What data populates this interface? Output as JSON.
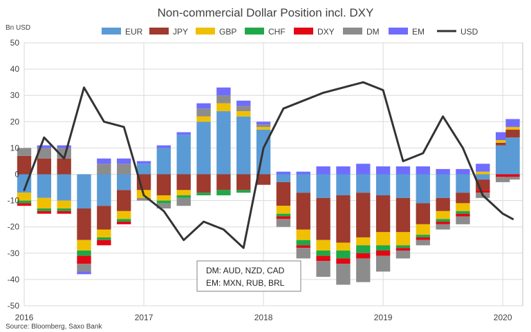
{
  "chart_data": {
    "type": "bar",
    "stacked": true,
    "title": "Non-commercial Dollar Position incl. DXY",
    "ylabel": "Bn USD",
    "source": "Source: Bloomberg, Saxo Bank",
    "ylim": [
      -50,
      50
    ],
    "yticks": [
      "50",
      "40",
      "30",
      "20",
      "10",
      "0",
      "-10",
      "-20",
      "-30",
      "-40",
      "-50"
    ],
    "xticks": [
      "2016",
      "2017",
      "2018",
      "2019",
      "2020"
    ],
    "grid": true,
    "legend_position": "top",
    "annotation": [
      "DM: AUD, NZD, CAD",
      "EM: MXN, RUB, BRL"
    ],
    "x_dates": [
      "2016-01",
      "2016-03",
      "2016-05",
      "2016-07",
      "2016-09",
      "2016-11",
      "2017-01",
      "2017-03",
      "2017-05",
      "2017-07",
      "2017-09",
      "2017-11",
      "2018-01",
      "2018-03",
      "2018-05",
      "2018-07",
      "2018-09",
      "2018-11",
      "2019-01",
      "2019-03",
      "2019-05",
      "2019-07",
      "2019-09",
      "2019-11",
      "2020-01",
      "2020-02"
    ],
    "series": [
      {
        "name": "EUR",
        "color": "#5b9bd5",
        "values": [
          -7,
          -9,
          -10,
          -13,
          -12,
          -6,
          4,
          10,
          15,
          20,
          24,
          22,
          17,
          -3,
          -7,
          -9,
          -8,
          -7,
          -8,
          -9,
          -11,
          -9,
          -7,
          -2,
          11,
          14
        ]
      },
      {
        "name": "JPY",
        "color": "#9e3a2e",
        "values": [
          7,
          6,
          6,
          -12,
          -9,
          -8,
          -6,
          -8,
          -6,
          -7,
          -6,
          -6,
          -4,
          -9,
          -14,
          -16,
          -18,
          -17,
          -14,
          -13,
          -8,
          -5,
          -4,
          -4,
          1,
          3
        ]
      },
      {
        "name": "GBP",
        "color": "#f0c000",
        "values": [
          -3,
          -4,
          -3,
          -4,
          -3,
          -3,
          -3,
          -2,
          -2,
          2,
          3,
          2,
          1,
          -3,
          -4,
          -4,
          -3,
          -3,
          -5,
          -5,
          -4,
          -3,
          -3,
          1,
          1,
          1
        ]
      },
      {
        "name": "CHF",
        "color": "#1fa84a",
        "values": [
          -1,
          -1,
          -1,
          -2,
          -1,
          -1,
          0,
          -1,
          -1,
          -1,
          -2,
          -1,
          0,
          -1,
          -2,
          -2,
          -3,
          -3,
          -2,
          -1,
          -1,
          -1,
          -1,
          0,
          0,
          0
        ]
      },
      {
        "name": "DXY",
        "color": "#e30613",
        "values": [
          -1,
          -1,
          -1,
          -3,
          -2,
          -1,
          0,
          0,
          0,
          0,
          0,
          0,
          0,
          -1,
          -1,
          -2,
          -2,
          -2,
          -2,
          -1,
          -1,
          -1,
          -1,
          -1,
          -1,
          -1
        ]
      },
      {
        "name": "DM",
        "color": "#8c8c8c",
        "values": [
          3,
          4,
          4,
          -3,
          4,
          4,
          -1,
          -2,
          -3,
          3,
          3,
          2,
          1,
          -3,
          -4,
          -6,
          -8,
          -9,
          -6,
          -3,
          -2,
          -2,
          -3,
          -2,
          -2,
          -1
        ]
      },
      {
        "name": "EM",
        "color": "#6f6cff",
        "values": [
          0,
          1,
          1,
          -1,
          2,
          2,
          1,
          1,
          1,
          2,
          3,
          2,
          1,
          1,
          1,
          3,
          3,
          4,
          3,
          3,
          3,
          2,
          2,
          3,
          3,
          3
        ]
      }
    ],
    "line": {
      "name": "USD",
      "color": "#333333",
      "values": [
        -6,
        14,
        6,
        33,
        20,
        18,
        -8,
        -14,
        -25,
        -18,
        -21,
        -28,
        10,
        25,
        28,
        31,
        33,
        35,
        32,
        5,
        8,
        22,
        10,
        -8,
        -15,
        -17
      ]
    }
  }
}
